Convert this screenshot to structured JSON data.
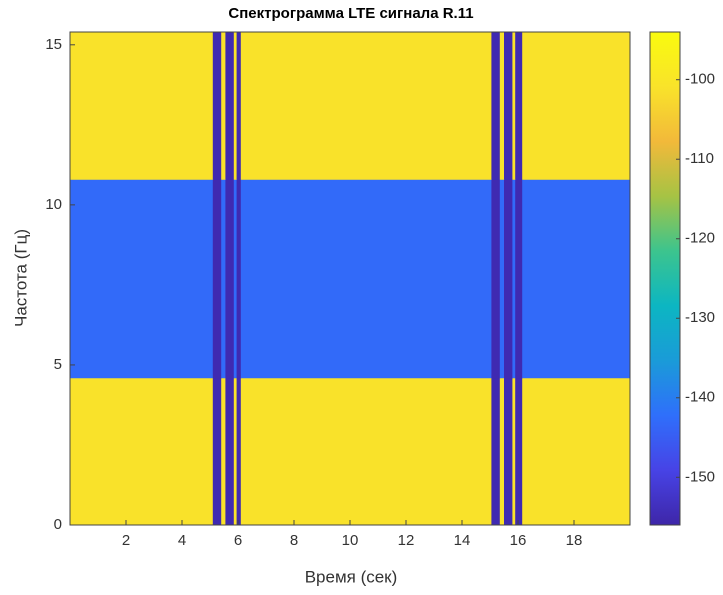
{
  "chart_data": {
    "type": "heatmap",
    "title": "Спектрограмма LTE сигнала R.11",
    "xlabel": "Время (сек)",
    "ylabel": "Частота (Гц)",
    "xbins": [
      0,
      5.1,
      5.4,
      5.55,
      5.85,
      5.95,
      6.1,
      15.05,
      15.35,
      15.5,
      15.8,
      15.9,
      16.15,
      20
    ],
    "ybins": [
      0,
      4.6,
      10.8,
      15.4
    ],
    "values": [
      [
        -101,
        -155,
        -101,
        -155,
        -101,
        -155,
        -101,
        -155,
        -101,
        -155,
        -101,
        -155,
        -101
      ],
      [
        -143,
        -155,
        -143,
        -155,
        -143,
        -155,
        -143,
        -155,
        -143,
        -155,
        -143,
        -155,
        -143
      ],
      [
        -101,
        -155,
        -101,
        -155,
        -101,
        -155,
        -101,
        -155,
        -101,
        -155,
        -101,
        -155,
        -101
      ]
    ],
    "xlim": [
      0,
      20
    ],
    "xticks": [
      2,
      4,
      6,
      8,
      10,
      12,
      14,
      16,
      18
    ],
    "ylim": [
      0,
      15.4
    ],
    "yticks": [
      0,
      5,
      10,
      15
    ],
    "clim": [
      -156,
      -94
    ],
    "cticks": [
      -150,
      -140,
      -130,
      -120,
      -110,
      -100
    ],
    "colormap": [
      "#3e26a8",
      "#4743e6",
      "#2f6ffb",
      "#1a9bd8",
      "#0cb6c2",
      "#3cc48e",
      "#a6c344",
      "#f2b93a",
      "#f9e32a",
      "#f9fb0e"
    ]
  }
}
